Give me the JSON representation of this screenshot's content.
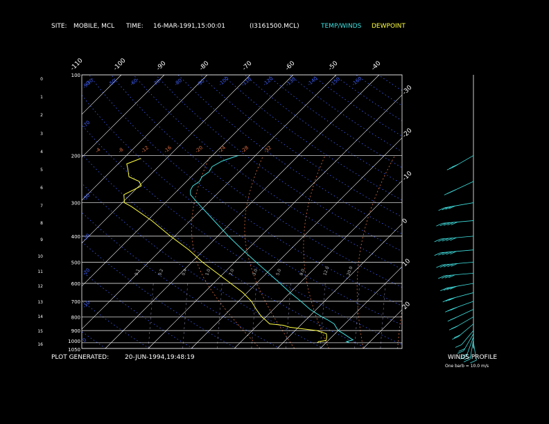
{
  "header": {
    "site_label": "SITE:",
    "site_value": "MOBILE, MCL",
    "time_label": "TIME:",
    "time_value": "16-MAR-1991,15:00:01",
    "file_value": "(I3161500.MCL)",
    "legend_temp": "TEMP/WINDS",
    "legend_dew": "DEWPOINT"
  },
  "footer": {
    "generated_label": "PLOT GENERATED:",
    "generated_value": "20-JUN-1994,19:48:19",
    "winds_title": "WINDS PROFILE",
    "barb_note": "One barb = 10.0 m/s"
  },
  "colors": {
    "background": "#000000",
    "temperature": "#40e0e0",
    "dewpoint": "#ffff40",
    "isotherm": "#ffffff",
    "isobar": "#ffffff",
    "dry_adiabat": "#4060ff",
    "moist_adiabat": "#e07040",
    "mixing_ratio": "#e07040",
    "winds": "#40e0e0"
  },
  "chart_data": {
    "type": "line",
    "chart_kind": "skew-T log-P thermodynamic diagram",
    "pressure_levels_mb": [
      100,
      200,
      300,
      400,
      500,
      600,
      700,
      800,
      900,
      1000,
      1050
    ],
    "pressure_tick_labels": [
      "100",
      "200",
      "300",
      "400",
      "500",
      "600",
      "700",
      "800",
      "900",
      "1000",
      "1050"
    ],
    "height_ticks_km": [
      "0",
      "1",
      "2",
      "3",
      "4",
      "5",
      "6",
      "7",
      "8",
      "9",
      "10",
      "11",
      "12",
      "13",
      "14",
      "15",
      "16"
    ],
    "isotherm_labels_top": [
      "-110",
      "-100",
      "-90",
      "-80",
      "-70",
      "-60",
      "-50",
      "-40"
    ],
    "isotherm_labels_right": [
      "-30",
      "-20",
      "-10",
      "0",
      "10",
      "20",
      "30"
    ],
    "dry_adiabat_labels": [
      "-80",
      "-60",
      "-50",
      "-40",
      "-30",
      "-20",
      "-10",
      "0",
      "10",
      "20",
      "30",
      "40",
      "50",
      "60",
      "70",
      "80",
      "90",
      "100",
      "110",
      "120",
      "130",
      "140",
      "150",
      "160",
      "170"
    ],
    "dry_adiabat_label_row": [
      "-30",
      "-50",
      "-60",
      "-70",
      "-80",
      "-90",
      "-100",
      "-110",
      "-120",
      "-130",
      "-140",
      "-150",
      "-160"
    ],
    "moist_adiabat_labels": [
      "-4",
      "-8",
      "-12",
      "-16",
      "-20",
      "-24",
      "-28",
      "-32"
    ],
    "mixing_ratio_labels": [
      "0.1",
      "0.2",
      "0.4",
      "1.0",
      "2.0",
      "3.0",
      "5.0",
      "8.0",
      "12.0",
      "20.0"
    ],
    "left_axis_side_labels": [
      "-90",
      "-70",
      "-50",
      "-30",
      "-20",
      "-10",
      "0"
    ],
    "series": [
      {
        "name": "TEMP/WINDS",
        "points": [
          {
            "p": 1000,
            "t": 15.5
          },
          {
            "p": 990,
            "t": 14.5
          },
          {
            "p": 975,
            "t": 15.6
          },
          {
            "p": 950,
            "t": 13.8
          },
          {
            "p": 925,
            "t": 12.0
          },
          {
            "p": 900,
            "t": 10.0
          },
          {
            "p": 880,
            "t": 9.0
          },
          {
            "p": 850,
            "t": 7.5
          },
          {
            "p": 820,
            "t": 5.0
          },
          {
            "p": 800,
            "t": 3.0
          },
          {
            "p": 750,
            "t": -1.5
          },
          {
            "p": 700,
            "t": -5.5
          },
          {
            "p": 650,
            "t": -10.0
          },
          {
            "p": 600,
            "t": -14.5
          },
          {
            "p": 550,
            "t": -19.5
          },
          {
            "p": 500,
            "t": -25.0
          },
          {
            "p": 450,
            "t": -31.0
          },
          {
            "p": 400,
            "t": -37.5
          },
          {
            "p": 350,
            "t": -44.5
          },
          {
            "p": 300,
            "t": -52.5
          },
          {
            "p": 280,
            "t": -56.0
          },
          {
            "p": 270,
            "t": -57.0
          },
          {
            "p": 260,
            "t": -57.5
          },
          {
            "p": 250,
            "t": -57.0
          },
          {
            "p": 240,
            "t": -57.5
          },
          {
            "p": 230,
            "t": -57.0
          },
          {
            "p": 220,
            "t": -57.5
          },
          {
            "p": 210,
            "t": -56.5
          },
          {
            "p": 200,
            "t": -54.0
          }
        ]
      },
      {
        "name": "DEWPOINT",
        "points": [
          {
            "p": 1000,
            "t": 8.0
          },
          {
            "p": 990,
            "t": 8.0
          },
          {
            "p": 980,
            "t": 9.5
          },
          {
            "p": 950,
            "t": 8.8
          },
          {
            "p": 925,
            "t": 8.0
          },
          {
            "p": 900,
            "t": 5.0
          },
          {
            "p": 875,
            "t": -2.0
          },
          {
            "p": 860,
            "t": -4.0
          },
          {
            "p": 850,
            "t": -7.5
          },
          {
            "p": 820,
            "t": -9.5
          },
          {
            "p": 800,
            "t": -11.0
          },
          {
            "p": 750,
            "t": -14.0
          },
          {
            "p": 700,
            "t": -17.0
          },
          {
            "p": 650,
            "t": -21.0
          },
          {
            "p": 600,
            "t": -26.0
          },
          {
            "p": 550,
            "t": -31.5
          },
          {
            "p": 500,
            "t": -37.5
          },
          {
            "p": 450,
            "t": -43.5
          },
          {
            "p": 400,
            "t": -51.0
          },
          {
            "p": 350,
            "t": -59.0
          },
          {
            "p": 310,
            "t": -67.0
          },
          {
            "p": 300,
            "t": -69.5
          },
          {
            "p": 280,
            "t": -71.5
          },
          {
            "p": 260,
            "t": -69.5
          },
          {
            "p": 250,
            "t": -71.0
          },
          {
            "p": 240,
            "t": -74.5
          },
          {
            "p": 225,
            "t": -76.5
          },
          {
            "p": 215,
            "t": -78.0
          },
          {
            "p": 205,
            "t": -76.0
          }
        ]
      }
    ],
    "winds": [
      {
        "p": 1000,
        "dir": 170,
        "spd": 10
      },
      {
        "p": 975,
        "dir": 190,
        "spd": 15
      },
      {
        "p": 950,
        "dir": 200,
        "spd": 18
      },
      {
        "p": 925,
        "dir": 210,
        "spd": 15
      },
      {
        "p": 900,
        "dir": 220,
        "spd": 12
      },
      {
        "p": 850,
        "dir": 230,
        "spd": 15
      },
      {
        "p": 800,
        "dir": 240,
        "spd": 18
      },
      {
        "p": 750,
        "dir": 245,
        "spd": 20
      },
      {
        "p": 700,
        "dir": 250,
        "spd": 25
      },
      {
        "p": 650,
        "dir": 255,
        "spd": 30
      },
      {
        "p": 600,
        "dir": 260,
        "spd": 35
      },
      {
        "p": 550,
        "dir": 265,
        "spd": 40
      },
      {
        "p": 500,
        "dir": 265,
        "spd": 45
      },
      {
        "p": 450,
        "dir": 265,
        "spd": 50
      },
      {
        "p": 400,
        "dir": 265,
        "spd": 50
      },
      {
        "p": 350,
        "dir": 265,
        "spd": 45
      },
      {
        "p": 300,
        "dir": 260,
        "spd": 40
      },
      {
        "p": 250,
        "dir": 245,
        "spd": 30
      },
      {
        "p": 200,
        "dir": 240,
        "spd": 25
      }
    ]
  }
}
